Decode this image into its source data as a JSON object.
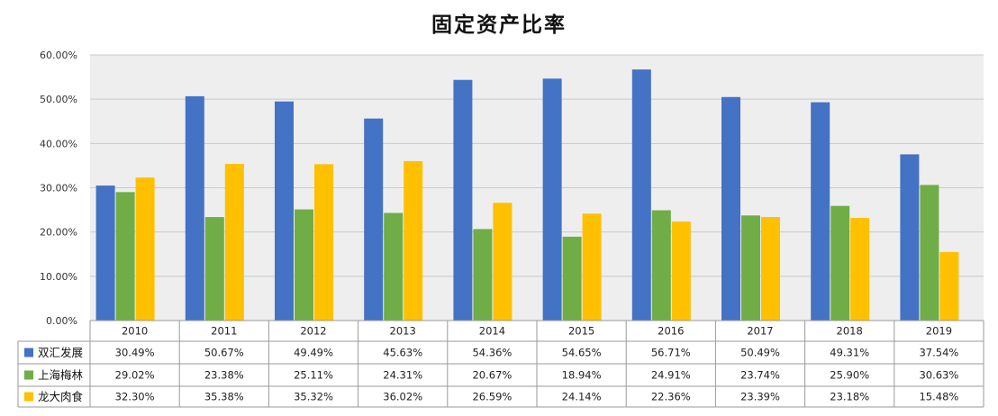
{
  "chart_data": {
    "type": "bar",
    "title": "固定资产比率",
    "categories": [
      "2010",
      "2011",
      "2012",
      "2013",
      "2014",
      "2015",
      "2016",
      "2017",
      "2018",
      "2019"
    ],
    "series": [
      {
        "name": "双汇发展",
        "color": "#4472c4",
        "values": [
          30.49,
          50.67,
          49.49,
          45.63,
          54.36,
          54.65,
          56.71,
          50.49,
          49.31,
          37.54
        ],
        "labels": [
          "30.49%",
          "50.67%",
          "49.49%",
          "45.63%",
          "54.36%",
          "54.65%",
          "56.71%",
          "50.49%",
          "49.31%",
          "37.54%"
        ]
      },
      {
        "name": "上海梅林",
        "color": "#70ad47",
        "values": [
          29.02,
          23.38,
          25.11,
          24.31,
          20.67,
          18.94,
          24.91,
          23.74,
          25.9,
          30.63
        ],
        "labels": [
          "29.02%",
          "23.38%",
          "25.11%",
          "24.31%",
          "20.67%",
          "18.94%",
          "24.91%",
          "23.74%",
          "25.90%",
          "30.63%"
        ]
      },
      {
        "name": "龙大肉食",
        "color": "#ffc000",
        "values": [
          32.3,
          35.38,
          35.32,
          36.02,
          26.59,
          24.14,
          22.36,
          23.39,
          23.18,
          15.48
        ],
        "labels": [
          "32.30%",
          "35.38%",
          "35.32%",
          "36.02%",
          "26.59%",
          "24.14%",
          "22.36%",
          "23.39%",
          "23.18%",
          "15.48%"
        ]
      }
    ],
    "yticks": [
      "0.00%",
      "10.00%",
      "20.00%",
      "30.00%",
      "40.00%",
      "50.00%",
      "60.00%"
    ],
    "ylim": [
      0,
      60
    ],
    "grid": true,
    "legend_placement": "data-table-left"
  }
}
